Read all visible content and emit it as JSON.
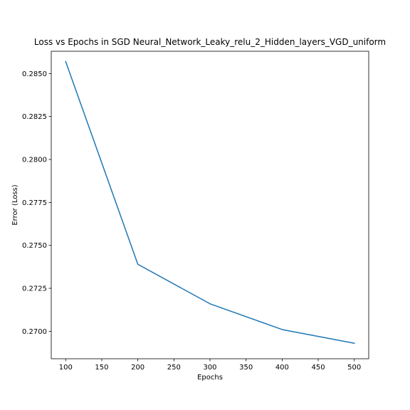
{
  "chart_data": {
    "type": "line",
    "title": "Loss vs Epochs in SGD Neural_Network_Leaky_relu_2_Hidden_layers_VGD_uniform",
    "xlabel": "Epochs",
    "ylabel": "Error (Loss)",
    "xlim": [
      80,
      520
    ],
    "ylim": [
      0.2684,
      0.2863
    ],
    "x_ticks": [
      100,
      150,
      200,
      250,
      300,
      350,
      400,
      450,
      500
    ],
    "y_ticks": [
      0.27,
      0.2725,
      0.275,
      0.2775,
      0.28,
      0.2825,
      0.285
    ],
    "x_tick_labels": [
      "100",
      "150",
      "200",
      "250",
      "300",
      "350",
      "400",
      "450",
      "500"
    ],
    "y_tick_labels": [
      "0.2700",
      "0.2725",
      "0.2750",
      "0.2775",
      "0.2800",
      "0.2825",
      "0.2850"
    ],
    "grid": false,
    "series": [
      {
        "color": "#1f77b4",
        "x": [
          100,
          200,
          300,
          400,
          500
        ],
        "y": [
          0.2857,
          0.2739,
          0.2716,
          0.2701,
          0.2693
        ]
      }
    ]
  }
}
